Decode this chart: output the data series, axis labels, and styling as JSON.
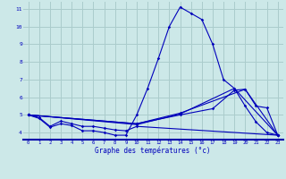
{
  "title": "Graphe des températures (°c)",
  "bg_color": "#cce8e8",
  "grid_color": "#aacccc",
  "line_color": "#0000bb",
  "xlim": [
    -0.5,
    23.5
  ],
  "ylim": [
    3.6,
    11.4
  ],
  "xticks": [
    0,
    1,
    2,
    3,
    4,
    5,
    6,
    7,
    8,
    9,
    10,
    11,
    12,
    13,
    14,
    15,
    16,
    17,
    18,
    19,
    20,
    21,
    22,
    23
  ],
  "yticks": [
    4,
    5,
    6,
    7,
    8,
    9,
    10,
    11
  ],
  "curve1_x": [
    0,
    1,
    2,
    3,
    4,
    5,
    6,
    7,
    8,
    9,
    10,
    11,
    12,
    13,
    14,
    15,
    16,
    17,
    18,
    19,
    20,
    21,
    22,
    23
  ],
  "curve1_y": [
    5.0,
    4.8,
    4.3,
    4.5,
    4.4,
    4.1,
    4.1,
    4.0,
    3.85,
    3.85,
    5.0,
    6.5,
    8.2,
    10.0,
    11.1,
    10.75,
    10.4,
    9.0,
    7.0,
    6.5,
    5.5,
    4.6,
    4.0,
    3.85
  ],
  "curve2_x": [
    0,
    1,
    2,
    3,
    4,
    5,
    6,
    7,
    8,
    9,
    10,
    23
  ],
  "curve2_y": [
    5.0,
    4.85,
    4.35,
    4.65,
    4.5,
    4.35,
    4.35,
    4.25,
    4.15,
    4.1,
    4.35,
    3.85
  ],
  "curve3_x": [
    0,
    10,
    14,
    19,
    23
  ],
  "curve3_y": [
    5.0,
    4.45,
    5.05,
    6.5,
    3.85
  ],
  "curve4_x": [
    0,
    10,
    14,
    20,
    23
  ],
  "curve4_y": [
    5.0,
    4.5,
    5.1,
    6.45,
    3.85
  ],
  "curve5_x": [
    0,
    10,
    14,
    17,
    19,
    20,
    21,
    22,
    23
  ],
  "curve5_y": [
    5.0,
    4.5,
    5.0,
    5.35,
    6.4,
    6.45,
    5.5,
    5.4,
    3.85
  ]
}
